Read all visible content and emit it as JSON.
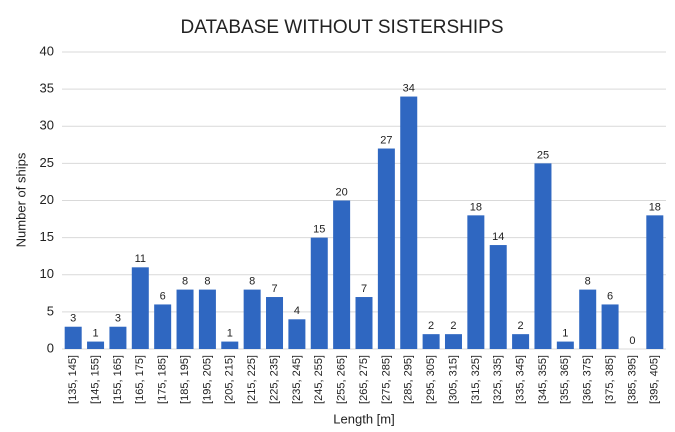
{
  "chart_data": {
    "type": "bar",
    "title": "DATABASE WITHOUT SISTERSHIPS",
    "x_label": "Length [m]",
    "y_label": "Number of ships",
    "categories": [
      "[135, 145]",
      "[145, 155]",
      "[155, 165]",
      "[165, 175]",
      "[175, 185]",
      "[185, 195]",
      "[195, 205]",
      "[205, 215]",
      "[215, 225]",
      "[225, 235]",
      "[235, 245]",
      "[245, 255]",
      "[255, 265]",
      "[265, 275]",
      "[275, 285]",
      "[285, 295]",
      "[295, 305]",
      "[305, 315]",
      "[315, 325]",
      "[325, 335]",
      "[335, 345]",
      "[345, 355]",
      "[355, 365]",
      "[365, 375]",
      "[375, 385]",
      "[385, 395]",
      "[395, 405]"
    ],
    "values": [
      3,
      1,
      3,
      11,
      6,
      8,
      8,
      1,
      8,
      7,
      4,
      15,
      20,
      7,
      27,
      34,
      2,
      2,
      18,
      14,
      2,
      25,
      1,
      8,
      6,
      0,
      18
    ],
    "color": "#2f67c1",
    "ylim": [
      0,
      40
    ],
    "yticks": [
      0,
      5,
      10,
      15,
      20,
      25,
      30,
      35,
      40
    ],
    "grid": true
  }
}
